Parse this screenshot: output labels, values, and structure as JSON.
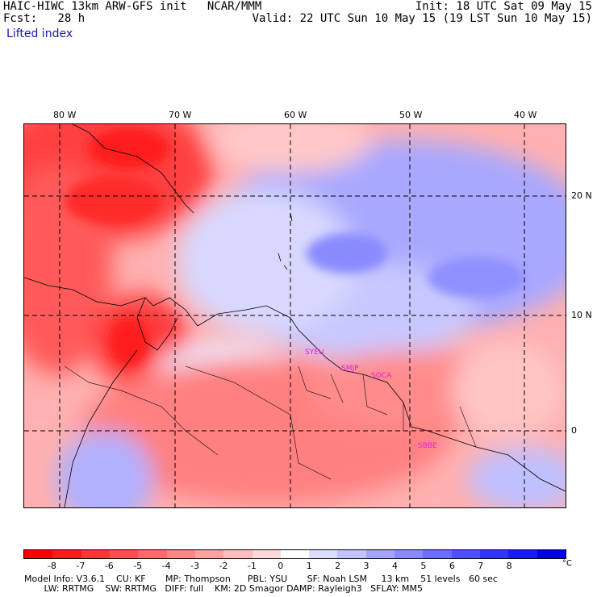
{
  "header": {
    "line1_left": "HAIC-HIWC 13km ARW-GFS init   NCAR/MMM",
    "line2_left": "Fcst:   28 h",
    "line1_right": "Init: 18 UTC Sat 09 May 15",
    "line2_right": "Valid: 22 UTC Sun 10 May 15 (19 LST Sun 10 May 15)",
    "field": "Lifted index"
  },
  "map": {
    "longitude_labels": [
      "80 W",
      "70 W",
      "60 W",
      "50 W",
      "40 W"
    ],
    "latitude_labels": [
      "20 N",
      "10 N",
      "0"
    ],
    "stations": [
      "SYEU",
      "SMJP",
      "SOCA",
      "SBBE"
    ]
  },
  "colorbar": {
    "tick_labels": [
      "-8",
      "-7",
      "-6",
      "-5",
      "-4",
      "-3",
      "-2",
      "-1",
      "0",
      "1",
      "2",
      "3",
      "4",
      "5",
      "6",
      "7",
      "8"
    ],
    "unit": "°C",
    "colors": [
      "#ff0000",
      "#ff1a1a",
      "#ff3535",
      "#ff5050",
      "#ff6b6b",
      "#ff8686",
      "#ffa1a1",
      "#ffbcbc",
      "#ffd8d8",
      "#ffffff",
      "#dcdcff",
      "#c2c2ff",
      "#a5a5ff",
      "#8a8aff",
      "#6d6dff",
      "#5050ff",
      "#3333ff",
      "#1a1aff",
      "#0000e8"
    ]
  },
  "model_info": {
    "line1": "Model Info: V3.6.1    CU: KF       MP: Thompson      PBL: YSU       SF: Noah LSM     13 km    51 levels   60 sec",
    "line2": "       LW: RRTMG    SW: RRTMG   DIFF: full    KM: 2D Smagor DAMP: Rayleigh3   SFLAY: MM5"
  }
}
